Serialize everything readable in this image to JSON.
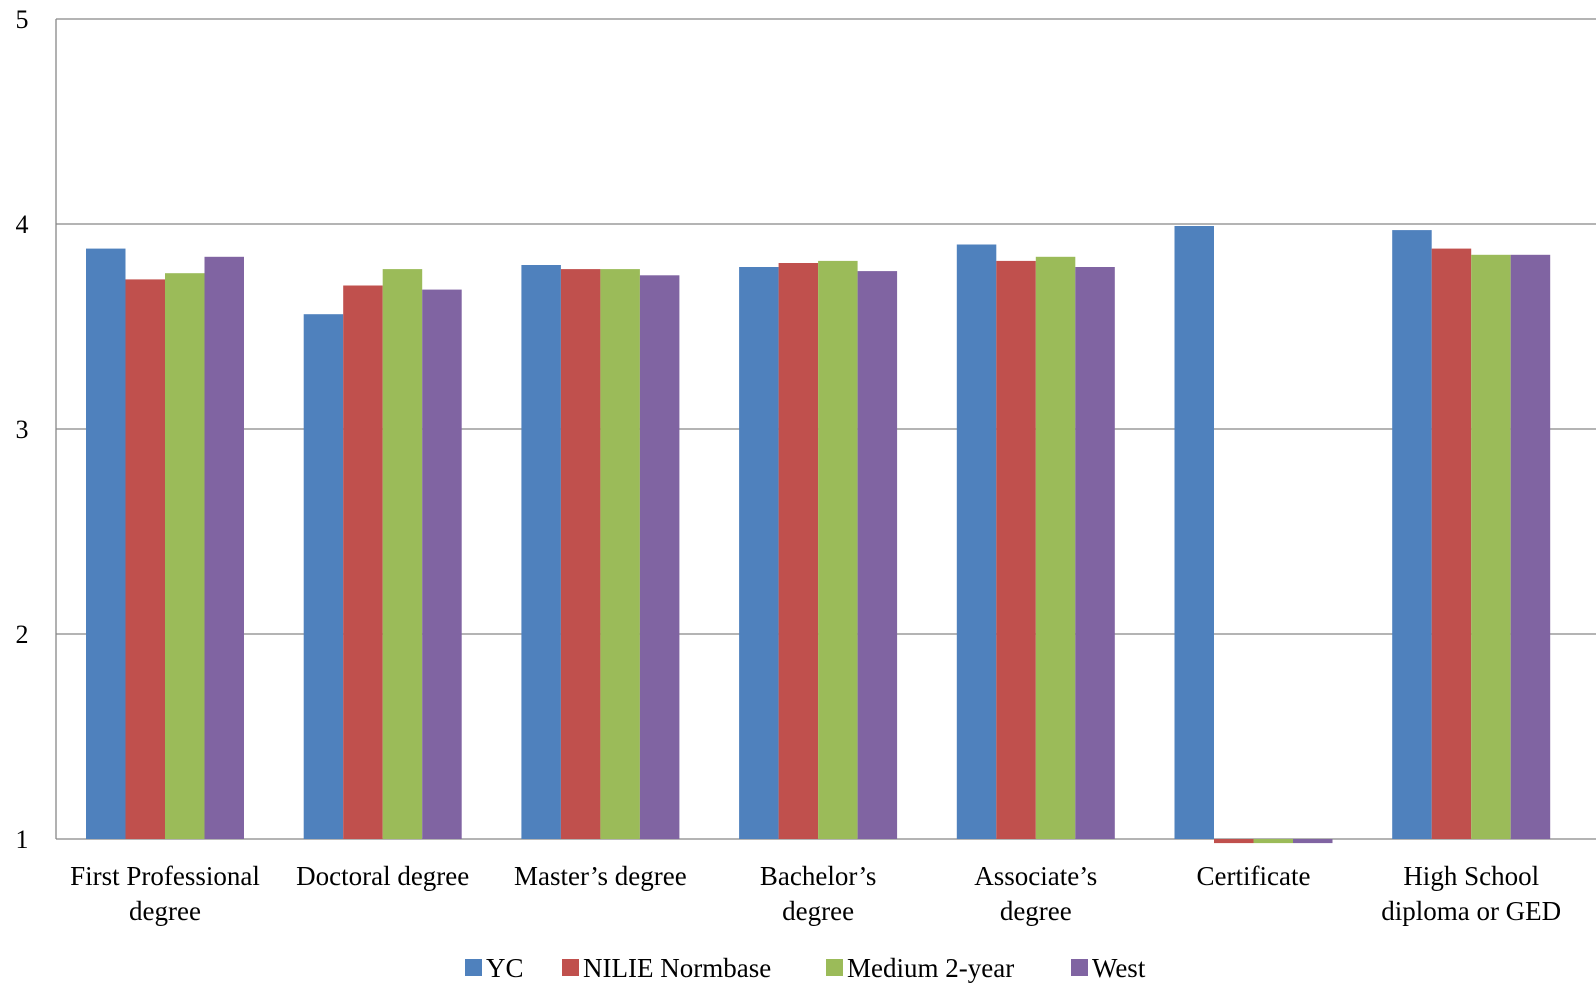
{
  "chart_data": {
    "type": "bar",
    "title": "",
    "xlabel": "",
    "ylabel": "",
    "ylim": [
      1,
      5
    ],
    "yticks": [
      "1",
      "2",
      "3",
      "4",
      "5"
    ],
    "grid": true,
    "legend_position": "bottom",
    "categories": [
      [
        "First Professional",
        "degree"
      ],
      [
        "Doctoral degree"
      ],
      [
        "Master’s degree"
      ],
      [
        "Bachelor’s",
        "degree"
      ],
      [
        "Associate’s",
        "degree"
      ],
      [
        "Certificate"
      ],
      [
        "High School",
        "diploma or GED"
      ]
    ],
    "series": [
      {
        "name": "YC",
        "color": "#4F81BD",
        "values": [
          3.88,
          3.56,
          3.8,
          3.79,
          3.9,
          3.99,
          3.97
        ]
      },
      {
        "name": "NILIE Normbase",
        "color": "#C0504D",
        "values": [
          3.73,
          3.7,
          3.78,
          3.81,
          3.82,
          0.98,
          3.88
        ]
      },
      {
        "name": "Medium 2-year",
        "color": "#9BBB59",
        "values": [
          3.76,
          3.78,
          3.78,
          3.82,
          3.84,
          0.98,
          3.85
        ]
      },
      {
        "name": "West",
        "color": "#8064A2",
        "values": [
          3.84,
          3.68,
          3.75,
          3.77,
          3.79,
          0.98,
          3.85
        ]
      }
    ]
  }
}
